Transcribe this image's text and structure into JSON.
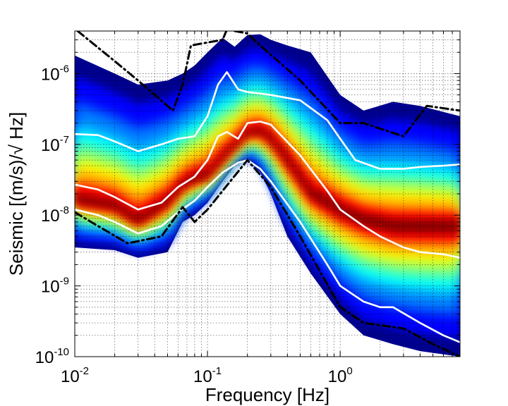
{
  "chart_data": {
    "type": "heatmap",
    "title": "",
    "xlabel": "Frequency [Hz]",
    "ylabel": "Seismic [(m/s)/√ Hz]",
    "xscale": "log",
    "yscale": "log",
    "xlim": [
      0.01,
      8
    ],
    "ylim": [
      1e-10,
      4e-06
    ],
    "grid": "on",
    "x_ticks": [
      {
        "value": 0.01,
        "base": "10",
        "exp": "-2"
      },
      {
        "value": 0.1,
        "base": "10",
        "exp": "-1"
      },
      {
        "value": 1,
        "base": "10",
        "exp": "0"
      }
    ],
    "y_ticks": [
      {
        "value": 1e-10,
        "base": "10",
        "exp": "-10"
      },
      {
        "value": 1e-09,
        "base": "10",
        "exp": "-9"
      },
      {
        "value": 1e-08,
        "base": "10",
        "exp": "-8"
      },
      {
        "value": 1e-07,
        "base": "10",
        "exp": "-7"
      },
      {
        "value": 1e-06,
        "base": "10",
        "exp": "-6"
      }
    ],
    "colormap": [
      "#00008f",
      "#0000ff",
      "#0080ff",
      "#00ffff",
      "#80ff80",
      "#ffff00",
      "#ff8000",
      "#ff0000",
      "#800000"
    ],
    "density_envelope": {
      "description_free_series": true,
      "x": [
        0.01,
        0.02,
        0.03,
        0.05,
        0.065,
        0.08,
        0.1,
        0.13,
        0.16,
        0.2,
        0.25,
        0.3,
        0.4,
        0.6,
        1.0,
        1.5,
        2.5,
        4.0,
        8.0
      ],
      "upper": [
        1.8e-06,
        1e-06,
        7e-07,
        8e-07,
        1e-06,
        1.3e-06,
        2e-06,
        3.2e-06,
        2.4e-06,
        3.5e-06,
        3.6e-06,
        3e-06,
        2.5e-06,
        2e-06,
        5e-07,
        3e-07,
        4e-07,
        3.5e-07,
        2.5e-07
      ],
      "lower": [
        3.5e-09,
        3.2e-09,
        2.5e-09,
        3e-09,
        8e-09,
        1e-08,
        1.5e-08,
        3e-08,
        5e-08,
        6e-08,
        4e-08,
        2e-08,
        5e-09,
        1.5e-09,
        4e-10,
        2e-10,
        1.5e-10,
        1.2e-10,
        1e-10
      ]
    },
    "hot_ridge": {
      "x": [
        0.01,
        0.02,
        0.03,
        0.05,
        0.07,
        0.1,
        0.15,
        0.2,
        0.25,
        0.3,
        0.4,
        0.6,
        1.0,
        2.0
      ],
      "y": [
        1.6e-08,
        1.3e-08,
        8e-09,
        1.5e-08,
        3e-08,
        3.5e-08,
        8e-08,
        1.4e-07,
        1.5e-07,
        1.2e-07,
        6e-08,
        2e-08,
        1.2e-08,
        7e-09
      ]
    },
    "series": [
      {
        "name": "percentile-upper",
        "color": "#ffffff",
        "style": "solid",
        "x": [
          0.01,
          0.015,
          0.02,
          0.03,
          0.045,
          0.06,
          0.08,
          0.1,
          0.12,
          0.14,
          0.17,
          0.2,
          0.3,
          0.5,
          0.8,
          1.0,
          1.3,
          2.0,
          3.0,
          4.0,
          6.0,
          8.0
        ],
        "y": [
          1.4e-07,
          1.35e-07,
          1.1e-07,
          8e-08,
          1e-07,
          1.2e-07,
          1.3e-07,
          2.5e-07,
          7e-07,
          1.05e-06,
          6e-07,
          5.5e-07,
          5e-07,
          4.2e-07,
          2.2e-07,
          1.2e-07,
          6e-08,
          4.5e-08,
          4.5e-08,
          4.8e-08,
          5e-08,
          5.2e-08
        ]
      },
      {
        "name": "percentile-median",
        "color": "#ffffff",
        "style": "solid",
        "x": [
          0.01,
          0.015,
          0.02,
          0.03,
          0.045,
          0.06,
          0.08,
          0.1,
          0.12,
          0.14,
          0.17,
          0.2,
          0.25,
          0.3,
          0.5,
          0.8,
          1.0,
          1.5,
          2.0,
          3.0,
          4.0,
          6.0,
          8.0
        ],
        "y": [
          2.7e-08,
          2.3e-08,
          1.8e-08,
          1.2e-08,
          1.5e-08,
          2.5e-08,
          3.5e-08,
          6e-08,
          1.3e-07,
          1.5e-07,
          1.2e-07,
          2e-07,
          2.1e-07,
          1.9e-07,
          7e-08,
          2.2e-08,
          1.2e-08,
          7e-09,
          5e-09,
          3.5e-09,
          3e-09,
          2.8e-09,
          2.5e-09
        ]
      },
      {
        "name": "percentile-lower",
        "color": "#ffffff",
        "style": "solid",
        "x": [
          0.01,
          0.015,
          0.02,
          0.03,
          0.045,
          0.06,
          0.08,
          0.1,
          0.13,
          0.17,
          0.2,
          0.25,
          0.3,
          0.5,
          0.8,
          1.0,
          1.5,
          2.0,
          2.5,
          4.0,
          6.0,
          8.0
        ],
        "y": [
          1.2e-08,
          1e-08,
          8e-09,
          5.5e-09,
          7e-09,
          1.1e-08,
          1.6e-08,
          2.5e-08,
          4e-08,
          5.5e-08,
          6e-08,
          4.5e-08,
          3e-08,
          8e-09,
          2e-09,
          1e-09,
          6e-10,
          5e-10,
          5e-10,
          3e-10,
          2e-10,
          1.6e-10
        ]
      },
      {
        "name": "noise-model-high",
        "color": "#000000",
        "style": "dash-dot",
        "x": [
          0.0105,
          0.02,
          0.03,
          0.055,
          0.065,
          0.075,
          0.13,
          0.14,
          0.2,
          0.25,
          0.5,
          1.0,
          1.5,
          3.0,
          4.5,
          8.0
        ],
        "y": [
          4e-06,
          1.5e-06,
          8e-07,
          3e-07,
          7e-07,
          2.5e-06,
          3e-06,
          4.2e-06,
          3.7e-06,
          2.5e-06,
          8e-07,
          2e-07,
          2e-07,
          1.3e-07,
          3.5e-07,
          3e-07
        ]
      },
      {
        "name": "noise-model-low",
        "color": "#000000",
        "style": "dash-dot",
        "x": [
          0.01,
          0.015,
          0.025,
          0.045,
          0.065,
          0.08,
          0.1,
          0.2,
          0.3,
          0.5,
          1.0,
          1.5,
          3.0,
          5.0,
          8.0
        ],
        "y": [
          1.1e-08,
          7e-09,
          4e-09,
          5e-09,
          1.3e-08,
          8e-09,
          1.2e-08,
          6e-08,
          2.5e-08,
          5e-09,
          5e-10,
          3e-10,
          2.5e-10,
          1.5e-10,
          1e-10
        ]
      }
    ]
  }
}
